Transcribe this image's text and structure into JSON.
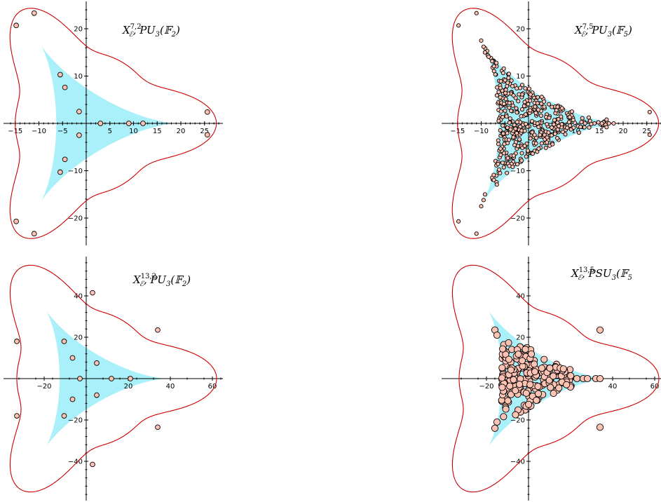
{
  "colors": {
    "curve": "#cc0000",
    "region": "#aaf0fa",
    "point_fill": "#ffc3b4",
    "point_stroke": "#000000",
    "axes": "#000000"
  },
  "chart_data": [
    {
      "type": "scatter",
      "panel": "top-left",
      "title": {
        "x": "X",
        "sup": "7,2",
        "sub": "ℰ",
        "tail": ",  PU",
        "tailsub": "3",
        "paren": "(𝔽",
        "parensub": "2",
        "close": ")"
      },
      "title_text": "X_ℰ^{7,2},  PU_3(𝔽_2)",
      "xlim": [
        -16,
        28
      ],
      "ylim": [
        -26,
        26
      ],
      "xticks": [
        -15,
        -10,
        -5,
        5,
        10,
        15,
        20,
        25
      ],
      "yticks": [
        -20,
        -10,
        10,
        20
      ],
      "curve": {
        "shape": "hypocycloid-hull",
        "a": 21,
        "b": 1,
        "rmax": 27.5,
        "rmin": 15
      },
      "region": {
        "shape": "deltoid",
        "R": 19
      },
      "point_size": "medium",
      "points": [
        [
          -14.8,
          20.7
        ],
        [
          -11.0,
          23.3
        ],
        [
          -14.8,
          -20.7
        ],
        [
          -11.0,
          -23.3
        ],
        [
          25.6,
          2.4
        ],
        [
          25.6,
          -2.4
        ],
        [
          -5.5,
          10.3
        ],
        [
          -4.5,
          7.6
        ],
        [
          -1.5,
          2.5
        ],
        [
          -1.5,
          -2.5
        ],
        [
          -4.5,
          -7.6
        ],
        [
          -5.5,
          -10.3
        ],
        [
          3.0,
          0.0
        ],
        [
          9.0,
          0.0
        ],
        [
          12.0,
          0.0
        ]
      ]
    },
    {
      "type": "scatter",
      "panel": "top-right",
      "title": {
        "x": "X",
        "sup": "7,5",
        "sub": "ℰ",
        "tail": ",  PU",
        "tailsub": "3",
        "paren": "(𝔽",
        "parensub": "5",
        "close": ")"
      },
      "title_text": "X_ℰ^{7,5},  PU_3(𝔽_5)",
      "xlim": [
        -16,
        28
      ],
      "ylim": [
        -26,
        26
      ],
      "xticks": [
        -15,
        -10,
        -5,
        5,
        10,
        15,
        20,
        25
      ],
      "yticks": [
        -20,
        -10,
        10,
        20
      ],
      "curve": {
        "shape": "hypocycloid-hull",
        "a": 21,
        "b": 1,
        "rmax": 27.5,
        "rmin": 15
      },
      "region": {
        "shape": "deltoid",
        "R": 19
      },
      "point_size": "small",
      "points_description": "dense cloud of about 450 points filling the shaded region, plus points on the curve",
      "points": [
        [
          -14.8,
          20.7
        ],
        [
          -11.0,
          23.3
        ],
        [
          -14.8,
          -20.7
        ],
        [
          -11.0,
          -23.3
        ],
        [
          25.6,
          2.4
        ],
        [
          25.6,
          -2.4
        ],
        [
          -10.0,
          17.5
        ],
        [
          -9.5,
          16.2
        ],
        [
          -9.2,
          15.0
        ],
        [
          -10.0,
          -17.5
        ],
        [
          -9.5,
          -16.2
        ],
        [
          -9.2,
          -15.0
        ],
        [
          15.5,
          0.0
        ],
        [
          17.0,
          0.0
        ],
        [
          18.0,
          0.0
        ],
        [
          16.5,
          0.8
        ],
        [
          16.5,
          -0.8
        ]
      ],
      "random_cloud": {
        "count": 430,
        "seed": 7
      }
    },
    {
      "type": "scatter",
      "panel": "bottom-left",
      "title": {
        "x": "X",
        "sup": "13,2",
        "sub": "ℰ",
        "tail": ",  PU",
        "tailsub": "3",
        "paren": "(𝔽",
        "parensub": "2",
        "close": ")"
      },
      "title_text": "X_ℰ^{13,2},  PU_3(𝔽_2)",
      "xlim": [
        -34,
        65
      ],
      "ylim": [
        -57,
        57
      ],
      "xticks": [
        -20,
        20,
        40,
        60
      ],
      "yticks": [
        -40,
        -20,
        20,
        40
      ],
      "curve": {
        "shape": "hypocycloid-hull",
        "a": 42,
        "b": 1,
        "rmax": 62,
        "rmin": 33
      },
      "region": {
        "shape": "deltoid",
        "R": 38
      },
      "point_size": "medium",
      "points": [
        [
          -33.0,
          18.0
        ],
        [
          -33.0,
          -18.0
        ],
        [
          3.0,
          41.5
        ],
        [
          3.0,
          -41.5
        ],
        [
          34.0,
          23.5
        ],
        [
          34.0,
          -23.5
        ],
        [
          -10.5,
          18.0
        ],
        [
          -6.5,
          10.0
        ],
        [
          -3.0,
          0.0
        ],
        [
          -6.5,
          -10.0
        ],
        [
          -10.5,
          -18.0
        ],
        [
          5.0,
          7.5
        ],
        [
          5.0,
          -8.0
        ],
        [
          12.0,
          0.0
        ],
        [
          21.0,
          0.0
        ]
      ]
    },
    {
      "type": "scatter",
      "panel": "bottom-right",
      "title": {
        "x": "X",
        "sup": "13,5",
        "sub": "ℰ",
        "tail": ",  PSU",
        "tailsub": "3",
        "paren": "(𝔽",
        "parensub": "5",
        "close": ""
      },
      "title_text": "X_ℰ^{13,5},  PSU_3(𝔽_5",
      "xlim": [
        -34,
        65
      ],
      "ylim": [
        -57,
        57
      ],
      "xticks": [
        -20,
        20,
        40,
        60
      ],
      "yticks": [
        -40,
        -20,
        20,
        40
      ],
      "curve": {
        "shape": "hypocycloid-hull",
        "a": 42,
        "b": 1,
        "rmax": 62,
        "rmin": 33
      },
      "region": {
        "shape": "deltoid",
        "R": 38
      },
      "point_size": "large",
      "points_description": "cluster of about 220 large points concentrated near the left of the shaded region and along the x-axis",
      "points": [
        [
          34.0,
          23.5
        ],
        [
          34.0,
          -23.5
        ],
        [
          -16.0,
          23.5
        ],
        [
          -15.0,
          21.0
        ],
        [
          -16.0,
          -24.0
        ],
        [
          -15.0,
          -21.0
        ],
        [
          23.0,
          0.0
        ],
        [
          26.0,
          0.0
        ],
        [
          28.0,
          0.0
        ],
        [
          32.0,
          0.0
        ],
        [
          34.0,
          0.0
        ]
      ],
      "random_cloud": {
        "count": 210,
        "seed": 13
      }
    }
  ]
}
